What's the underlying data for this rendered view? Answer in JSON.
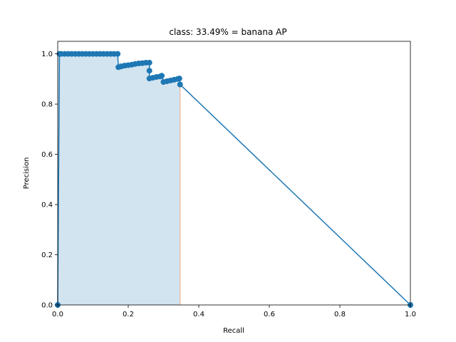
{
  "chart_data": {
    "type": "line",
    "title": "class: 33.49% = banana AP",
    "xlabel": "Recall",
    "ylabel": "Precision",
    "xlim": [
      0.0,
      1.0
    ],
    "ylim": [
      0.0,
      1.05
    ],
    "x_ticks": [
      "0.0",
      "0.2",
      "0.4",
      "0.6",
      "0.8",
      "1.0"
    ],
    "y_ticks": [
      "0.0",
      "0.2",
      "0.4",
      "0.6",
      "0.8",
      "1.0"
    ],
    "x_tick_values": [
      0.0,
      0.2,
      0.4,
      0.6,
      0.8,
      1.0
    ],
    "y_tick_values": [
      0.0,
      0.2,
      0.4,
      0.6,
      0.8,
      1.0
    ],
    "grid": false,
    "colors": {
      "line": "#1f77b4",
      "fill": "#1f77b4",
      "fill_edge": "#f4a582"
    },
    "series": [
      {
        "recall": [
          0.0,
          0.005,
          0.01,
          0.02,
          0.03,
          0.04,
          0.05,
          0.06,
          0.07,
          0.08,
          0.09,
          0.1,
          0.11,
          0.12,
          0.13,
          0.14,
          0.15,
          0.16,
          0.17,
          0.172,
          0.18,
          0.19,
          0.2,
          0.21,
          0.22,
          0.23,
          0.24,
          0.25,
          0.26,
          0.26,
          0.26,
          0.27,
          0.28,
          0.29,
          0.295,
          0.3,
          0.31,
          0.32,
          0.33,
          0.34,
          0.345,
          0.347,
          1.0
        ],
        "precision": [
          0.0,
          1.0,
          1.0,
          1.0,
          1.0,
          1.0,
          1.0,
          1.0,
          1.0,
          1.0,
          1.0,
          1.0,
          1.0,
          1.0,
          1.0,
          1.0,
          1.0,
          1.0,
          1.0,
          0.947,
          0.95,
          0.953,
          0.955,
          0.957,
          0.96,
          0.962,
          0.963,
          0.965,
          0.965,
          0.933,
          0.902,
          0.905,
          0.908,
          0.91,
          0.913,
          0.888,
          0.891,
          0.894,
          0.897,
          0.9,
          0.902,
          0.878,
          0.0
        ]
      }
    ],
    "area": {
      "recall": [
        0.0,
        0.005,
        0.17,
        0.172,
        0.26,
        0.261,
        0.295,
        0.296,
        0.345,
        0.347
      ],
      "precision": [
        1.0,
        1.0,
        1.0,
        0.965,
        0.965,
        0.913,
        0.913,
        0.902,
        0.902,
        0.878
      ]
    }
  }
}
